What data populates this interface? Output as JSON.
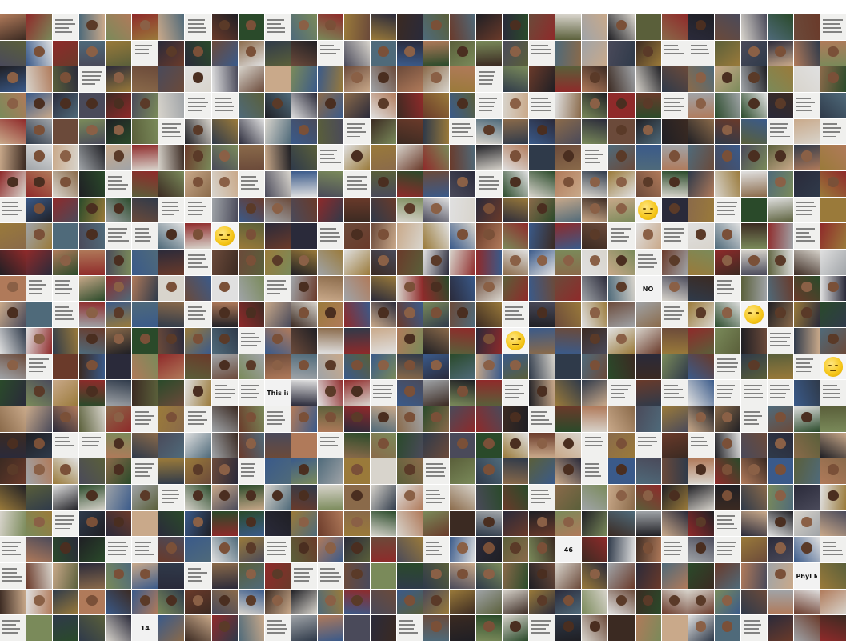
{
  "mosaic": {
    "columns": 32,
    "rows": 24,
    "tile_count": 768,
    "palette": [
      "#3b2a22",
      "#6b4a3a",
      "#2f3a4a",
      "#4f6a7a",
      "#8a6a4a",
      "#c9a98a",
      "#5a5f3a",
      "#7a8a5a",
      "#1f1f24",
      "#a0a4a8",
      "#d8d4cc",
      "#6a3a2a",
      "#3a5a8a",
      "#b07a5a",
      "#2a4a2a",
      "#8f2a2a",
      "#e0e0e0",
      "#4a4a5a",
      "#9a7a3a",
      "#2a2a3a"
    ],
    "text_tiles": [
      {
        "index": 458,
        "text": "This is deep"
      },
      {
        "index": 344,
        "text": "NO"
      },
      {
        "index": 702,
        "text": "Phyl Maker"
      },
      {
        "index": 661,
        "text": "46"
      },
      {
        "index": 741,
        "text": "14"
      }
    ],
    "emoji_tiles": [
      403,
      380,
      264,
      447,
      248
    ]
  }
}
